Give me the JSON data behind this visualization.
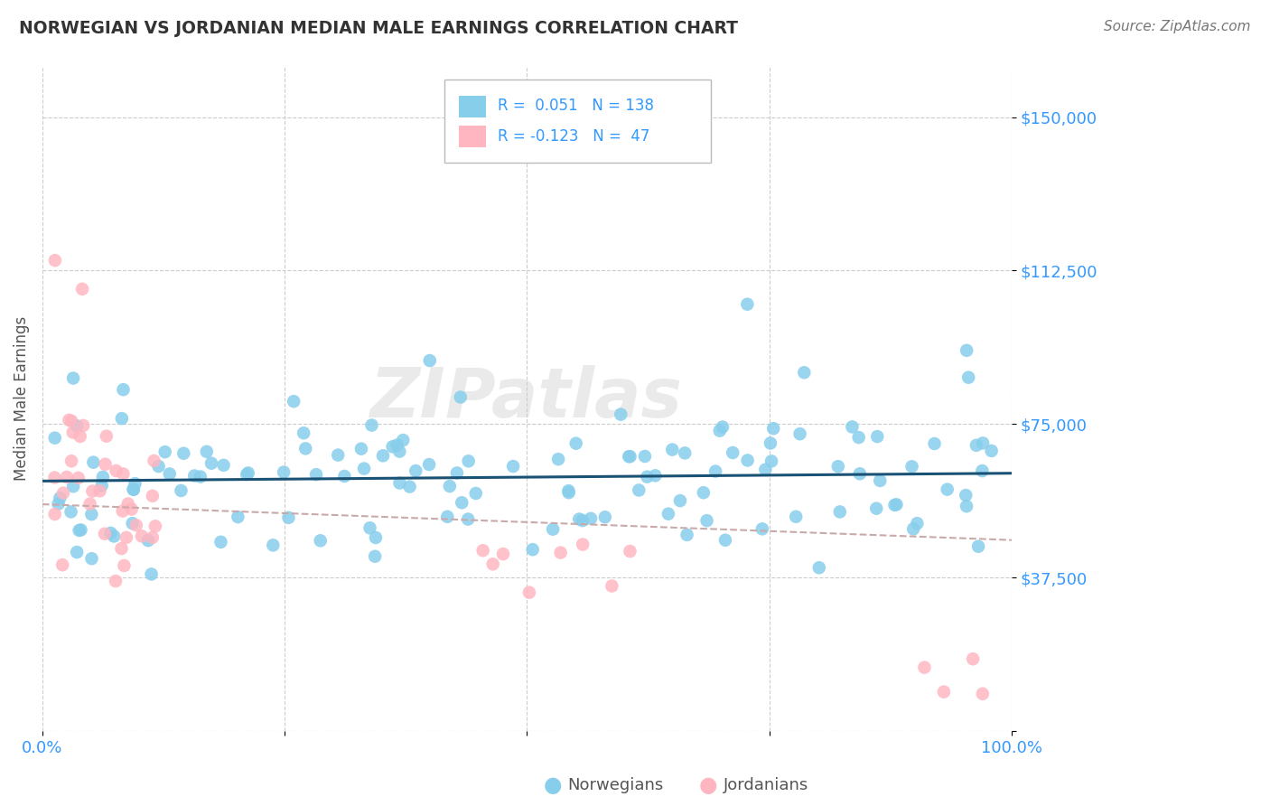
{
  "title": "NORWEGIAN VS JORDANIAN MEDIAN MALE EARNINGS CORRELATION CHART",
  "source_text": "Source: ZipAtlas.com",
  "ylabel": "Median Male Earnings",
  "xlim": [
    0,
    1
  ],
  "ylim": [
    0,
    162500
  ],
  "ytick_vals": [
    0,
    37500,
    75000,
    112500,
    150000
  ],
  "ytick_labels": [
    "",
    "$37,500",
    "$75,000",
    "$112,500",
    "$150,000"
  ],
  "xtick_vals": [
    0,
    0.25,
    0.5,
    0.75,
    1.0
  ],
  "xtick_labels": [
    "0.0%",
    "",
    "",
    "",
    "100.0%"
  ],
  "norwegian_color": "#87CEEB",
  "jordanian_color": "#FFB6C1",
  "trend_norwegian_color": "#1A5276",
  "trend_jordanian_color": "#C9AAAA",
  "background_color": "#FFFFFF",
  "grid_color": "#CCCCCC",
  "title_color": "#333333",
  "axis_label_color": "#3399FF",
  "watermark": "ZIPatlas",
  "norwegian_R": 0.051,
  "norwegian_N": 138,
  "jordanian_R": -0.123,
  "jordanian_N": 47
}
